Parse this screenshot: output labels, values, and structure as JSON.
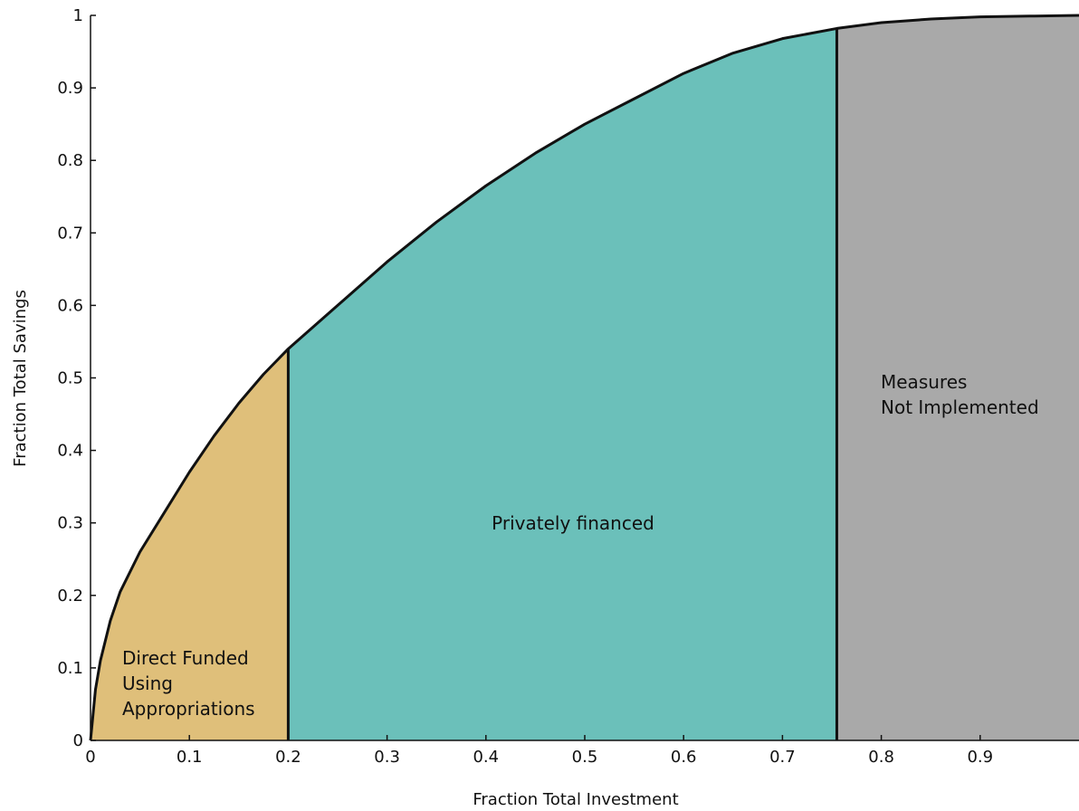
{
  "chart_data": {
    "type": "area",
    "title": "",
    "xlabel": "Fraction Total Investment",
    "ylabel": "Fraction Total Savings",
    "xlim": [
      0,
      1
    ],
    "ylim": [
      0,
      1
    ],
    "grid": false,
    "x_ticks": [
      "0",
      "0.1",
      "0.2",
      "0.3",
      "0.4",
      "0.5",
      "0.6",
      "0.7",
      "0.8",
      "0.9"
    ],
    "y_ticks": [
      "0",
      "0.1",
      "0.2",
      "0.3",
      "0.4",
      "0.5",
      "0.6",
      "0.7",
      "0.8",
      "0.9",
      "1"
    ],
    "curve": {
      "x": [
        0,
        0.005,
        0.01,
        0.02,
        0.03,
        0.05,
        0.075,
        0.1,
        0.125,
        0.15,
        0.175,
        0.2,
        0.25,
        0.3,
        0.35,
        0.4,
        0.45,
        0.5,
        0.55,
        0.6,
        0.65,
        0.7,
        0.755,
        0.8,
        0.85,
        0.9,
        0.95,
        1.0
      ],
      "y": [
        0,
        0.07,
        0.11,
        0.165,
        0.205,
        0.26,
        0.315,
        0.37,
        0.42,
        0.465,
        0.505,
        0.54,
        0.6,
        0.66,
        0.715,
        0.765,
        0.81,
        0.85,
        0.885,
        0.92,
        0.948,
        0.968,
        0.982,
        0.99,
        0.995,
        0.998,
        0.999,
        1.0
      ]
    },
    "regions": [
      {
        "label_lines": [
          "Direct Funded",
          "Using",
          "Appropriations"
        ],
        "x_start": 0,
        "x_end": 0.2,
        "color": "#dfbf7a"
      },
      {
        "label_lines": [
          "Privately financed"
        ],
        "x_start": 0.2,
        "x_end": 0.755,
        "color": "#6bc0ba"
      },
      {
        "label_lines": [
          "Measures",
          "Not Implemented"
        ],
        "x_start": 0.755,
        "x_end": 1.0,
        "color": "#a9a9a9"
      }
    ]
  }
}
